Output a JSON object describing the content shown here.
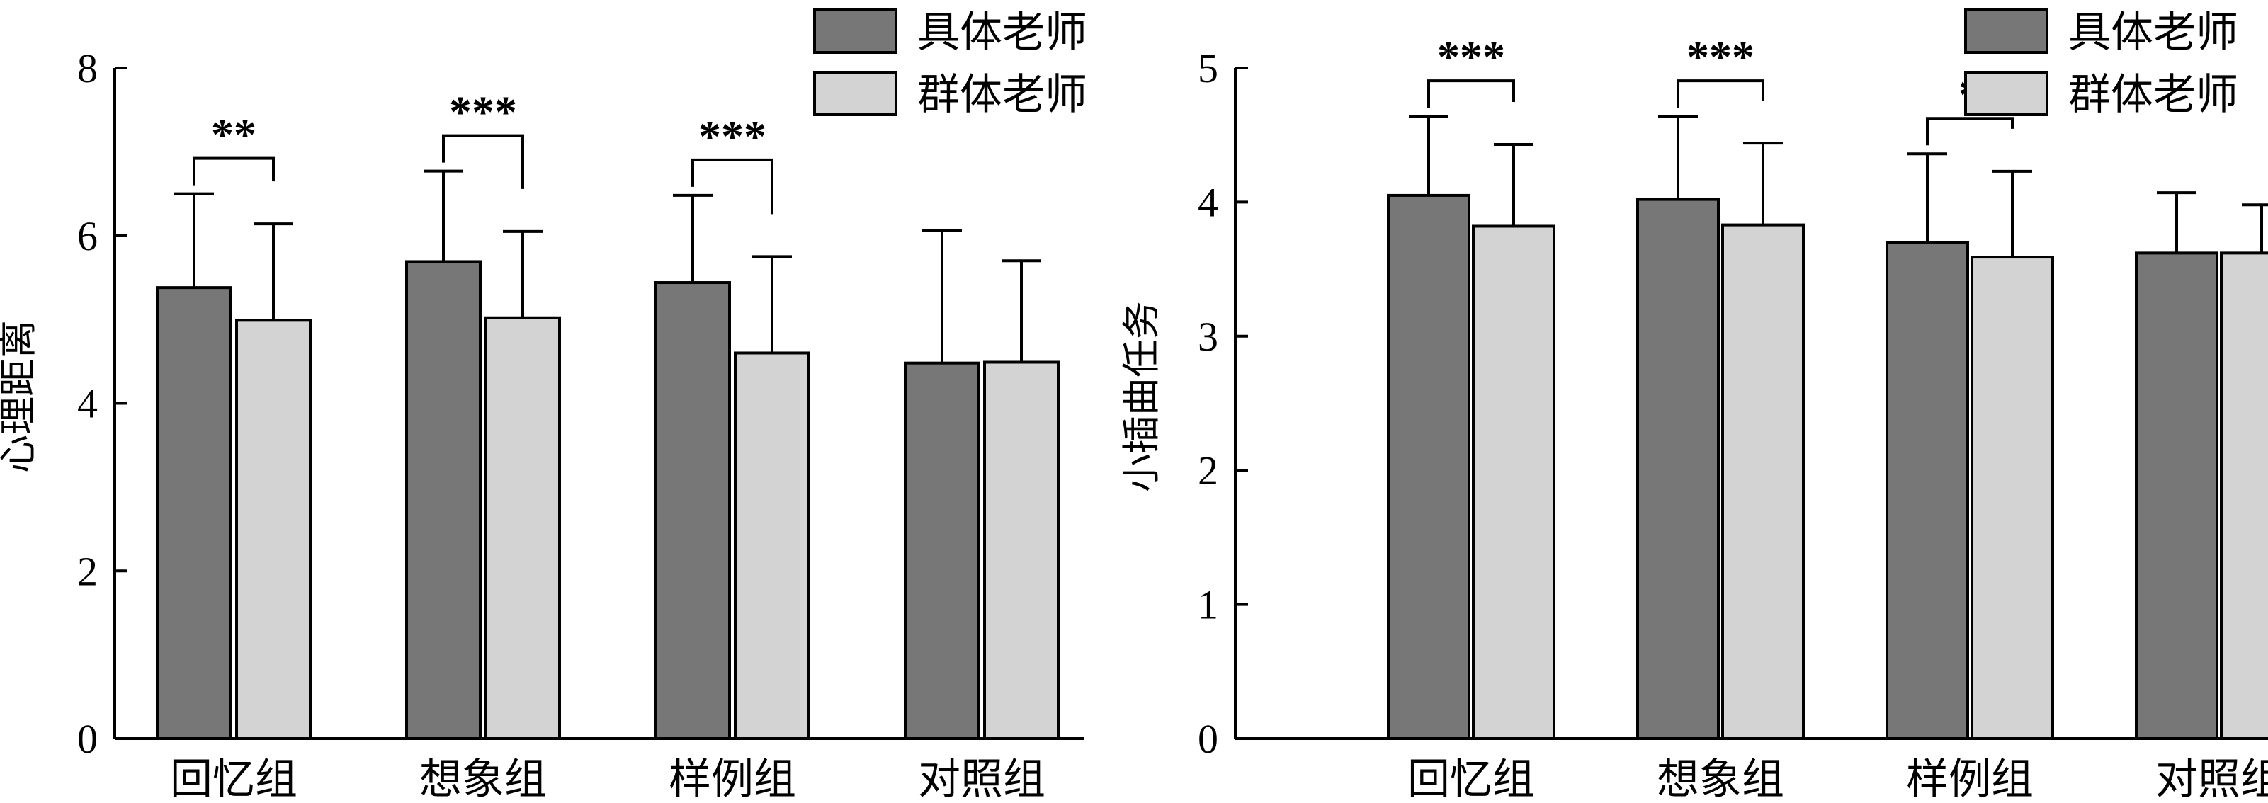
{
  "chart_data": [
    {
      "type": "bar",
      "categories": [
        "回忆组",
        "想象组",
        "样例组",
        "对照组"
      ],
      "series": [
        {
          "name": "具体老师",
          "values": [
            5.38,
            5.69,
            5.44,
            4.48
          ],
          "errors": [
            1.12,
            1.08,
            1.04,
            1.58
          ],
          "color": "#777777"
        },
        {
          "name": "群体老师",
          "values": [
            4.99,
            5.02,
            4.6,
            4.49
          ],
          "errors": [
            1.15,
            1.03,
            1.15,
            1.21
          ],
          "color": "#d3d3d3"
        }
      ],
      "ylabel": "心理距离",
      "ylim": [
        0,
        8
      ],
      "yticks": [
        0,
        2,
        4,
        6,
        8
      ],
      "significance": [
        {
          "category": "回忆组",
          "label": "**"
        },
        {
          "category": "想象组",
          "label": "***"
        },
        {
          "category": "样例组",
          "label": "***"
        }
      ],
      "legend": "top-right"
    },
    {
      "type": "bar",
      "categories": [
        "回忆组",
        "想象组",
        "样例组",
        "对照组"
      ],
      "series": [
        {
          "name": "具体老师",
          "values": [
            4.05,
            4.02,
            3.7,
            3.62
          ],
          "errors": [
            0.59,
            0.62,
            0.66,
            0.45
          ],
          "color": "#777777"
        },
        {
          "name": "群体老师",
          "values": [
            3.82,
            3.83,
            3.59,
            3.62
          ],
          "errors": [
            0.61,
            0.61,
            0.64,
            0.36
          ],
          "color": "#d3d3d3"
        }
      ],
      "ylabel": "小插曲任务",
      "ylim": [
        0,
        5
      ],
      "yticks": [
        0,
        1,
        2,
        3,
        4,
        5
      ],
      "significance": [
        {
          "category": "回忆组",
          "label": "***"
        },
        {
          "category": "想象组",
          "label": "***"
        },
        {
          "category": "样例组",
          "label": "*"
        }
      ],
      "legend": "top-right"
    }
  ]
}
